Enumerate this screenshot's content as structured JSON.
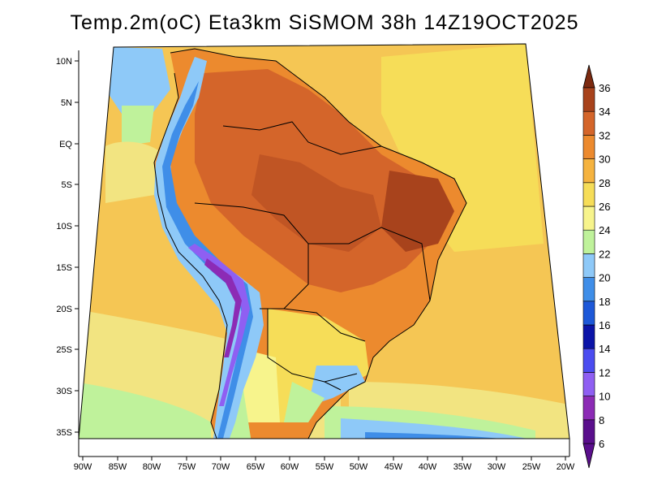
{
  "title": "Temp.2m(oC) Eta3km SiSMOM 38h 14Z19OCT2025",
  "variable": "Temp.2m(oC)",
  "model": "Eta3km",
  "system": "SiSMOM",
  "forecast_hour": "38h",
  "valid_time": "14Z19OCT2025",
  "lat_labels": [
    "10N",
    "5N",
    "EQ",
    "5S",
    "10S",
    "15S",
    "20S",
    "25S",
    "30S",
    "35S"
  ],
  "lon_labels": [
    "90W",
    "85W",
    "80W",
    "75W",
    "70W",
    "65W",
    "60W",
    "55W",
    "50W",
    "45W",
    "40W",
    "35W",
    "30W",
    "25W",
    "20W"
  ],
  "colorbar": {
    "labels": [
      "6",
      "8",
      "10",
      "12",
      "14",
      "16",
      "18",
      "20",
      "22",
      "24",
      "26",
      "28",
      "30",
      "32",
      "34",
      "36"
    ],
    "colors": [
      "#5a0f8c",
      "#8c2bb5",
      "#8f5ff2",
      "#4b4cf0",
      "#0b14a8",
      "#1d58d8",
      "#3f8ee8",
      "#8ec9f8",
      "#bff29b",
      "#f7f48c",
      "#f6dd58",
      "#f5b33f",
      "#ec8a2e",
      "#d4652a",
      "#a8431c",
      "#7c2a10"
    ]
  },
  "colors": {
    "ocean_warm": "#f5c654",
    "ocean_mid": "#f2e481",
    "land_hot": "#d77a34"
  }
}
